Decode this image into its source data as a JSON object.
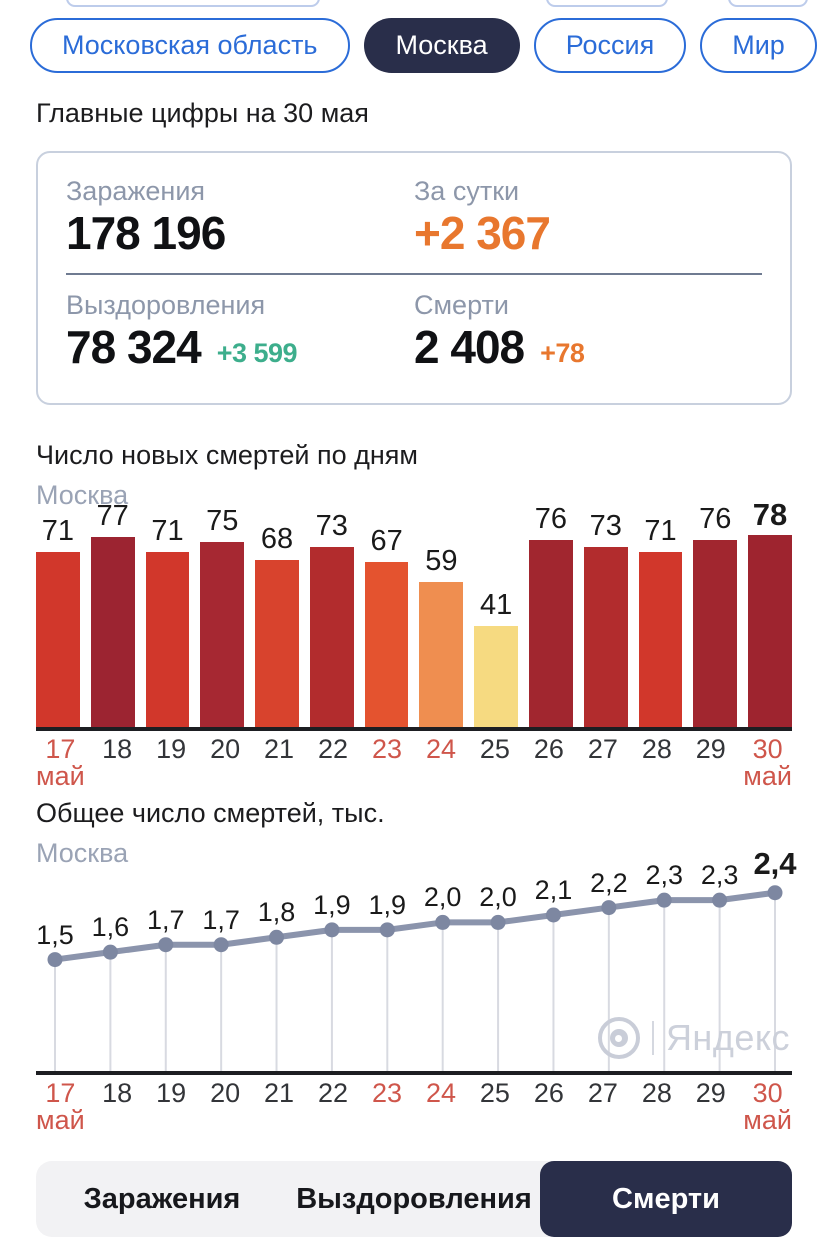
{
  "region_tabs": [
    {
      "label": "Московская область",
      "active": false
    },
    {
      "label": "Москва",
      "active": true
    },
    {
      "label": "Россия",
      "active": false
    },
    {
      "label": "Мир",
      "active": false
    }
  ],
  "headline": "Главные цифры на 30 мая",
  "summary": {
    "infections": {
      "label": "Заражения",
      "value": "178 196"
    },
    "daily": {
      "label": "За сутки",
      "value": "+2 367",
      "color": "#e8772e"
    },
    "recoveries": {
      "label": "Выздоровления",
      "value": "78 324",
      "delta": "+3 599",
      "delta_color": "#3dae8c"
    },
    "deaths": {
      "label": "Смерти",
      "value": "2 408",
      "delta": "+78",
      "delta_color": "#e8772e"
    }
  },
  "chart_data": [
    {
      "type": "bar",
      "title": "Число новых смертей по дням",
      "subtitle": "Москва",
      "categories": [
        "17",
        "18",
        "19",
        "20",
        "21",
        "22",
        "23",
        "24",
        "25",
        "26",
        "27",
        "28",
        "29",
        "30"
      ],
      "month_label_indices": [
        0,
        13
      ],
      "month_label": "май",
      "red_tick_indices": [
        0,
        6,
        7,
        13
      ],
      "values": [
        71,
        77,
        71,
        75,
        68,
        73,
        67,
        59,
        41,
        76,
        73,
        71,
        76,
        78
      ],
      "bar_colors": [
        "#d1372b",
        "#9c2431",
        "#d1372b",
        "#a62832",
        "#d8432d",
        "#b22c2d",
        "#e4532f",
        "#ef8e50",
        "#f6da81",
        "#a1262f",
        "#b22c2d",
        "#d1372b",
        "#a1262f",
        "#9e242f"
      ],
      "ylim": [
        0,
        78
      ],
      "bold_last_label": true,
      "grid": false
    },
    {
      "type": "line",
      "title": "Общее число смертей, тыс.",
      "subtitle": "Москва",
      "categories": [
        "17",
        "18",
        "19",
        "20",
        "21",
        "22",
        "23",
        "24",
        "25",
        "26",
        "27",
        "28",
        "29",
        "30"
      ],
      "month_label_indices": [
        0,
        13
      ],
      "month_label": "май",
      "red_tick_indices": [
        0,
        6,
        7,
        13
      ],
      "values": [
        1.5,
        1.6,
        1.7,
        1.7,
        1.8,
        1.9,
        1.9,
        2.0,
        2.0,
        2.1,
        2.2,
        2.3,
        2.3,
        2.4
      ],
      "point_labels": [
        "1,5",
        "1,6",
        "1,7",
        "1,7",
        "1,8",
        "1,9",
        "1,9",
        "2,0",
        "2,0",
        "2,1",
        "2,2",
        "2,3",
        "2,3",
        "2,4"
      ],
      "ylim": [
        0,
        2.8
      ],
      "line_color": "#8b94ac",
      "point_color": "#7d87a1",
      "drop_line_color": "#d8dae1",
      "bold_last_label": true,
      "grid": false
    }
  ],
  "bottom_tabs": [
    {
      "label": "Заражения",
      "active": false
    },
    {
      "label": "Выздоровления",
      "active": false
    },
    {
      "label": "Смерти",
      "active": true
    }
  ],
  "watermark": {
    "text": "Яндекс"
  },
  "colors": {
    "accent_blue": "#2b6cd8",
    "dark_navy": "#292e4a",
    "label_gray": "#8d97aa",
    "red_date": "#cf564b",
    "axis_black": "#1d1e22"
  }
}
